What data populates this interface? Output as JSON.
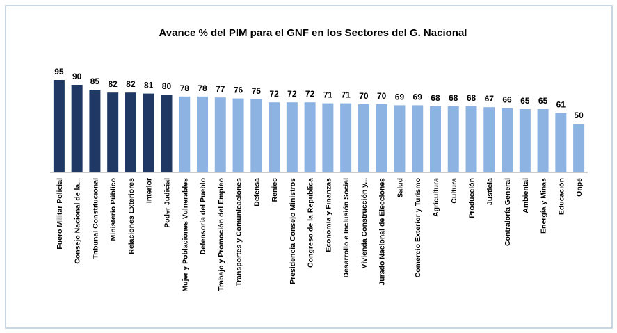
{
  "chart_data": {
    "type": "bar",
    "title": "Avance % del PIM para el GNF en los Sectores del G. Nacional",
    "categories": [
      "Fuero Militar Policial",
      "Consejo Nacional de la...",
      "Tribunal Constitucional",
      "Ministerio Público",
      "Relaciones Exteriores",
      "Interior",
      "Poder Judicial",
      "Mujer y Poblaciones Vulnerables",
      "Defensoría del Pueblo",
      "Trabajo y Promoción del Empleo",
      "Transportes y Comunicaciones",
      "Defensa",
      "Reniec",
      "Presidencia Consejo Ministros",
      "Congreso de la Republica",
      "Economía y Finanzas",
      "Desarrollo e Inclusión Social",
      "Vivienda Construcción y...",
      "Jurado Nacional de Elecciones",
      "Salud",
      "Comercio Exterior y Turismo",
      "Agricultura",
      "Cultura",
      "Producción",
      "Justicia",
      "Contraloría General",
      "Ambiental",
      "Energía y Minas",
      "Educación",
      "Onpe"
    ],
    "values": [
      95,
      90,
      85,
      82,
      82,
      81,
      80,
      78,
      78,
      77,
      76,
      75,
      72,
      72,
      72,
      71,
      71,
      70,
      70,
      69,
      69,
      68,
      68,
      68,
      67,
      66,
      65,
      65,
      61,
      50
    ],
    "colors": [
      "#1f3864",
      "#1f3864",
      "#1f3864",
      "#1f3864",
      "#1f3864",
      "#1f3864",
      "#1f3864",
      "#8db3e2",
      "#8db3e2",
      "#8db3e2",
      "#8db3e2",
      "#8db3e2",
      "#8db3e2",
      "#8db3e2",
      "#8db3e2",
      "#8db3e2",
      "#8db3e2",
      "#8db3e2",
      "#8db3e2",
      "#8db3e2",
      "#8db3e2",
      "#8db3e2",
      "#8db3e2",
      "#8db3e2",
      "#8db3e2",
      "#8db3e2",
      "#8db3e2",
      "#8db3e2",
      "#8db3e2",
      "#8db3e2"
    ],
    "ylim": [
      0,
      100
    ]
  }
}
